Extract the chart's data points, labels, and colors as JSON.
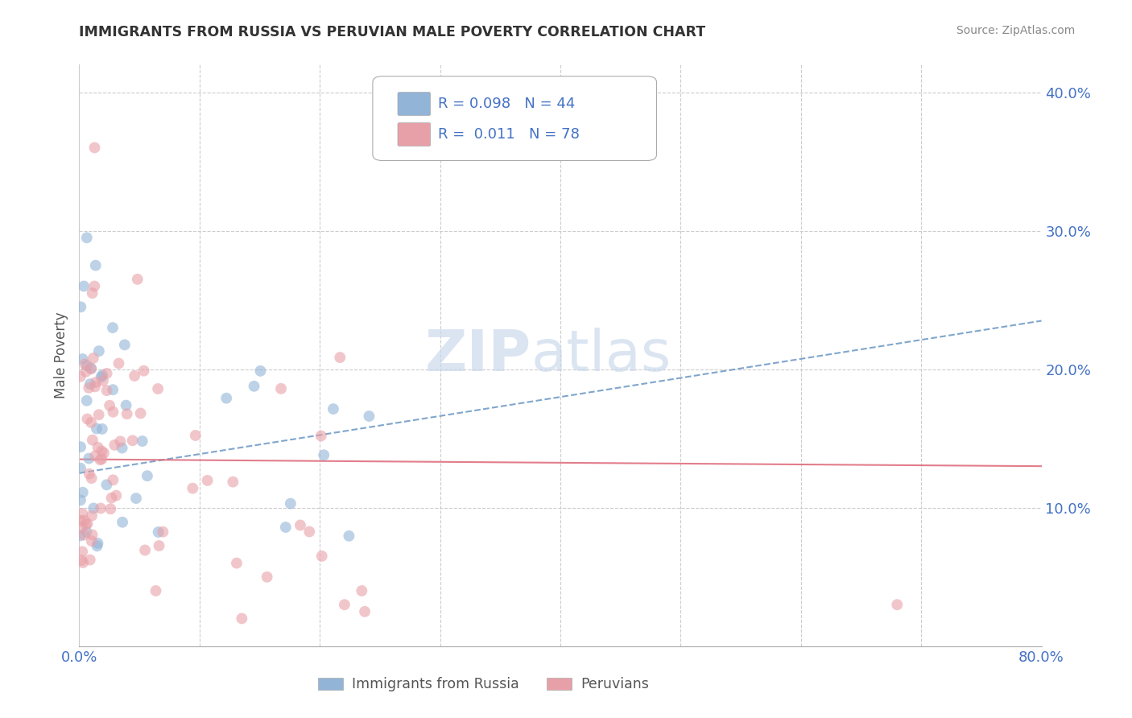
{
  "title": "IMMIGRANTS FROM RUSSIA VS PERUVIAN MALE POVERTY CORRELATION CHART",
  "source": "Source: ZipAtlas.com",
  "ylabel": "Male Poverty",
  "yticks": [
    0.1,
    0.2,
    0.3,
    0.4
  ],
  "ytick_labels": [
    "10.0%",
    "20.0%",
    "30.0%",
    "40.0%"
  ],
  "xlim": [
    0.0,
    0.8
  ],
  "ylim": [
    0.0,
    0.42
  ],
  "blue_color": "#92b4d7",
  "pink_color": "#e8a0a8",
  "trendline_blue_color": "#5588bb",
  "trendline_pink_color": "#dd6677",
  "watermark_zip": "ZIP",
  "watermark_atlas": "atlas",
  "background_color": "#ffffff",
  "grid_color": "#cccccc",
  "title_color": "#333333",
  "axis_label_color": "#4472c4",
  "legend_text_color": "#4472c4",
  "legend_r1": "R = 0.098",
  "legend_n1": "N = 44",
  "legend_r2": "R =  0.011",
  "legend_n2": "N = 78",
  "blue_trend_x0": 0.0,
  "blue_trend_y0": 0.125,
  "blue_trend_x1": 0.8,
  "blue_trend_y1": 0.235,
  "pink_trend_x0": 0.0,
  "pink_trend_y0": 0.135,
  "pink_trend_x1": 0.8,
  "pink_trend_y1": 0.13
}
